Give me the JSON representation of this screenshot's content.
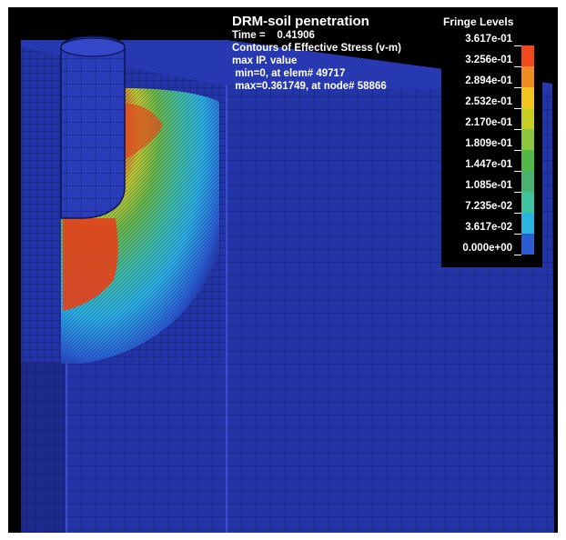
{
  "info": {
    "title": "DRM-soil penetration",
    "time_line": "Time =    0.41906",
    "contour_line": "Contours of Effective Stress (v-m)",
    "value_line": "max IP. value",
    "min_line": " min=0, at elem# 49717",
    "max_line": " max=0.361749, at node# 58866"
  },
  "legend": {
    "title": "Fringe Levels",
    "levels": [
      "3.617e-01",
      "3.256e-01",
      "2.894e-01",
      "2.532e-01",
      "2.170e-01",
      "1.809e-01",
      "1.447e-01",
      "1.085e-01",
      "7.235e-02",
      "3.617e-02",
      "0.000e+00"
    ],
    "colors": [
      "#ee4a1e",
      "#f08a22",
      "#f2c61e",
      "#c8cf24",
      "#8cc63c",
      "#52b848",
      "#4cb070",
      "#3ec2a0",
      "#2ab4e0",
      "#2a5ed0",
      "#2233a8"
    ]
  },
  "mesh_color": "#2234a6"
}
